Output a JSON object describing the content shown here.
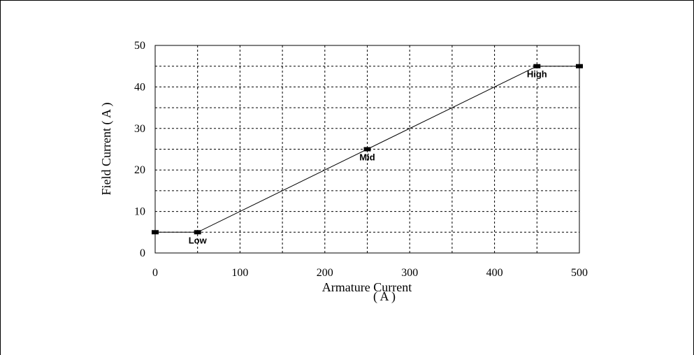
{
  "chart_data": {
    "type": "line",
    "title": "",
    "xlabel": "Armature Current",
    "xlabel_unit": "( A )",
    "ylabel": "Field Current ( A )",
    "xlim": [
      0,
      500
    ],
    "ylim": [
      0,
      50
    ],
    "x_major_ticks": [
      0,
      100,
      200,
      300,
      400,
      500
    ],
    "x_grid": [
      0,
      50,
      100,
      150,
      200,
      250,
      300,
      350,
      400,
      450,
      500
    ],
    "y_ticks": [
      0,
      10,
      20,
      30,
      40,
      50
    ],
    "y_grid": [
      0,
      5,
      10,
      15,
      20,
      25,
      30,
      35,
      40,
      45,
      50
    ],
    "grid": true,
    "series": [
      {
        "x": [
          0,
          50,
          250,
          450,
          500
        ],
        "y": [
          5,
          5,
          25,
          45,
          45
        ]
      }
    ],
    "annotations": [
      {
        "text": "Low",
        "x": 50,
        "y": 5
      },
      {
        "text": "Mid",
        "x": 250,
        "y": 25
      },
      {
        "text": "High",
        "x": 450,
        "y": 45
      }
    ],
    "colors": {
      "line": "#000000",
      "grid": "#000000",
      "marker": "#000000"
    }
  }
}
